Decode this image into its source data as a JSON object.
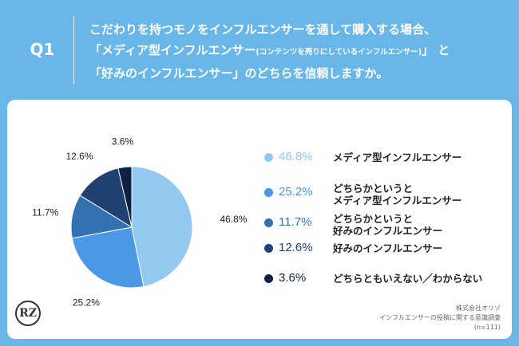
{
  "question": {
    "number": "Q1",
    "line1": "こだわりを持つモノをインフルエンサーを通して購入する場合、",
    "line2_main": "「メディア型インフルエンサー",
    "line2_small": "(コンテンツを売りにしているインフルエンサー)",
    "line2_end": "」 と",
    "line3": "「好みのインフルエンサー」のどちらを信頼しますか。"
  },
  "chart_data": {
    "type": "pie",
    "start_angle_deg": 0,
    "direction": "clockwise",
    "slices": [
      {
        "label": "メディア型インフルエンサー",
        "value": 46.8,
        "value_label": "46.8%",
        "legend_value": "46.8%",
        "color": "#93c9ef"
      },
      {
        "label": "どちらかというと\nメディア型インフルエンサー",
        "value": 25.2,
        "value_label": "25.2%",
        "legend_value": "25.2%",
        "color": "#4a98e6"
      },
      {
        "label": "どちらかというと\n好みのインフルエンサー",
        "value": 11.7,
        "value_label": "11.7%",
        "legend_value": "11.7%",
        "color": "#3371b3"
      },
      {
        "label": "好みのインフルエンサー",
        "value": 12.6,
        "value_label": "12.6%",
        "legend_value": "12.6%",
        "color": "#1f4273"
      },
      {
        "label": "どちらともいえない／わからない",
        "value": 3.6,
        "value_label": "3.6%",
        "legend_value": "3.6%",
        "color": "#0f2145"
      }
    ]
  },
  "logo_text": "RZ",
  "source": {
    "company": "株式会社オリゾ",
    "survey": "インフルエンサーの投稿に関する意識調査",
    "sample": "(n=111)"
  }
}
